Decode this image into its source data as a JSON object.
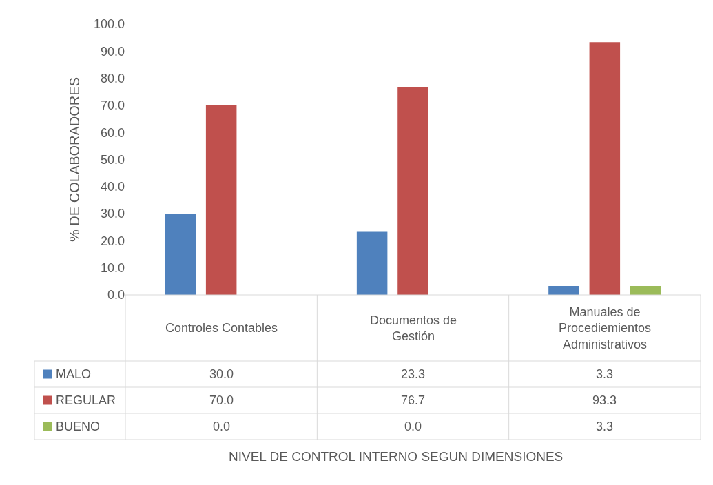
{
  "chart_data": {
    "type": "bar",
    "categories": [
      "Controles Contables",
      "Documentos de Gestión",
      "Manuales de Procediemientos Administrativos"
    ],
    "series": [
      {
        "name": "MALO",
        "color": "#4f81bd",
        "values": [
          30.0,
          23.3,
          3.3
        ],
        "value_labels": [
          "30.0",
          "23.3",
          "3.3"
        ]
      },
      {
        "name": "REGULAR",
        "color": "#c0504d",
        "values": [
          70.0,
          76.7,
          93.3
        ],
        "value_labels": [
          "70.0",
          "76.7",
          "93.3"
        ]
      },
      {
        "name": "BUENO",
        "color": "#9bbb59",
        "values": [
          0.0,
          0.0,
          3.3
        ],
        "value_labels": [
          "0.0",
          "0.0",
          "3.3"
        ]
      }
    ],
    "annotations": [
      "NIVEL DE CONTROL INTERNO SEGUN DIMENSIONES"
    ],
    "ylabel": "% DE COLABORADORES",
    "ylim": [
      0,
      100
    ],
    "yticks": [
      {
        "value": 0,
        "label": "0.0"
      },
      {
        "value": 10,
        "label": "10.0"
      },
      {
        "value": 20,
        "label": "20.0"
      },
      {
        "value": 30,
        "label": "30.0"
      },
      {
        "value": 40,
        "label": "40.0"
      },
      {
        "value": 50,
        "label": "50.0"
      },
      {
        "value": 60,
        "label": "60.0"
      },
      {
        "value": 70,
        "label": "70.0"
      },
      {
        "value": 80,
        "label": "80.0"
      },
      {
        "value": 90,
        "label": "90.0"
      },
      {
        "value": 100,
        "label": "100.0"
      }
    ],
    "grid": false,
    "legend": "bottom"
  }
}
